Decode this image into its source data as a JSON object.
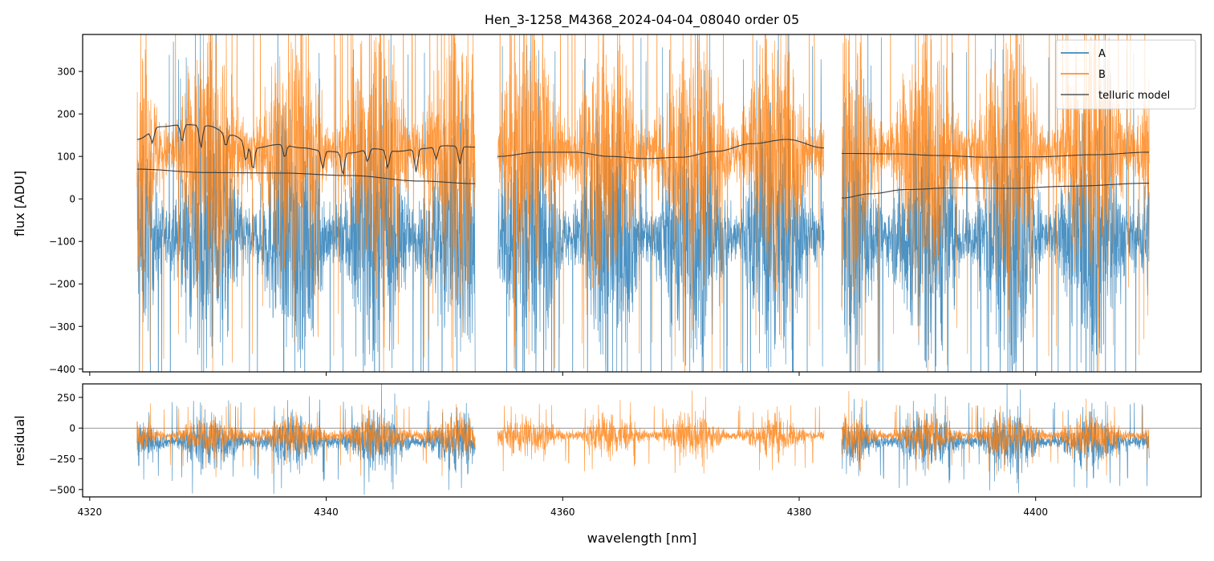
{
  "chart_data": {
    "type": "line",
    "title": "Hen_3-1258_M4368_2024-04-04_08040  order 05",
    "xlabel": "wavelength [nm]",
    "xlim": [
      4319.4,
      4414.0
    ],
    "xticks": [
      4320,
      4340,
      4360,
      4380,
      4400
    ],
    "panels": [
      {
        "name": "flux",
        "ylabel": "flux [ADU]",
        "ylim": [
          -407,
          387
        ],
        "yticks": [
          -400,
          -300,
          -200,
          -100,
          0,
          100,
          200,
          300
        ]
      },
      {
        "name": "residual",
        "ylabel": "residual",
        "ylim": [
          -560,
          360
        ],
        "yticks": [
          -500,
          -250,
          0,
          250
        ],
        "zero_line": true
      }
    ],
    "legend": {
      "position": "top-right",
      "entries": [
        "A",
        "B",
        "telluric model"
      ]
    },
    "colors": {
      "A": "#1f77b4",
      "B": "#ff7f0e",
      "telluric": "#3a3a3a"
    },
    "segments": [
      [
        4324.0,
        4352.6
      ],
      [
        4354.5,
        4382.1
      ],
      [
        4383.6,
        4409.6
      ]
    ],
    "series": [
      {
        "name": "A",
        "flux_mean": -90,
        "flux_spread": 170,
        "residual_mean": -110,
        "residual_spread": 120
      },
      {
        "name": "B",
        "flux_mean": 110,
        "flux_spread": 170,
        "residual_mean": -60,
        "residual_spread": 90
      }
    ],
    "telluric_model": [
      {
        "label": "B segment 1",
        "x": [
          4324,
          4326,
          4328,
          4330,
          4332,
          4334,
          4336,
          4338,
          4340,
          4342,
          4344,
          4346,
          4348,
          4350,
          4352.6
        ],
        "y": [
          140,
          170,
          175,
          172,
          150,
          120,
          128,
          120,
          112,
          108,
          118,
          112,
          118,
          125,
          122
        ],
        "dips": [
          4325.3,
          4327.8,
          4329.4,
          4331.5,
          4333.2,
          4333.8,
          4336.5,
          4339.7,
          4341.4,
          4343.5,
          4345.2,
          4347.6,
          4349.3,
          4351.3
        ]
      },
      {
        "label": "A segment 1",
        "x": [
          4324,
          4330,
          4336,
          4342,
          4348,
          4352.6
        ],
        "y": [
          70,
          62,
          61,
          55,
          42,
          36
        ]
      },
      {
        "label": "segment 2",
        "x": [
          4354.5,
          4358,
          4361,
          4364,
          4367,
          4370,
          4373,
          4376,
          4379,
          4382.1
        ],
        "y": [
          100,
          110,
          110,
          100,
          95,
          98,
          112,
          130,
          140,
          120
        ]
      },
      {
        "label": "B segment 3",
        "x": [
          4383.6,
          4388,
          4392,
          4396,
          4400,
          4405,
          4409.6
        ],
        "y": [
          107,
          106,
          102,
          98,
          99,
          104,
          110
        ]
      },
      {
        "label": "A segment 3",
        "x": [
          4383.6,
          4386,
          4389,
          4393,
          4398,
          4403,
          4409.6
        ],
        "y": [
          2,
          12,
          22,
          26,
          25,
          30,
          37
        ]
      }
    ]
  }
}
